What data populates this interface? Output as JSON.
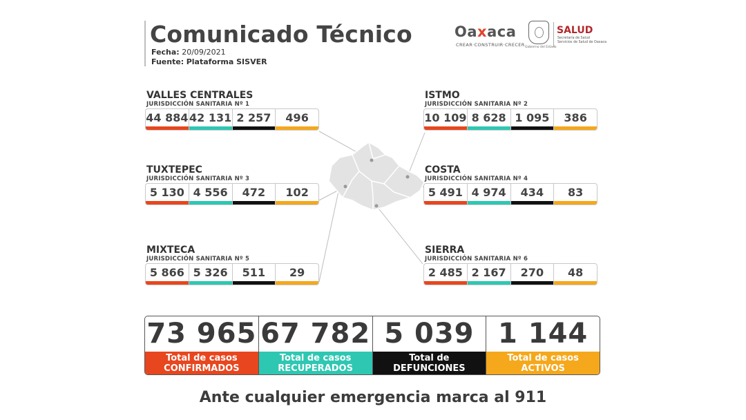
{
  "header": {
    "title": "Comunicado Técnico",
    "fecha_label": "Fecha:",
    "fecha_value": "20/09/2021",
    "fuente_label": "Fuente:",
    "fuente_value": "Plataforma SISVER"
  },
  "logos": {
    "oaxaca_pre": "Oa",
    "oaxaca_x": "x",
    "oaxaca_post": "aca",
    "oaxaca_tagline": "CREAR·CONSTRUIR·CRECER",
    "seal_caption": "Gobierno del Estado",
    "salud": "SALUD",
    "salud_sub1": "Secretaría de Salud",
    "salud_sub2": "Servicios de Salud de Oaxaca"
  },
  "regions": [
    {
      "name": "VALLES CENTRALES",
      "jurisdiction": "JURISDICCIÓN SANITARIA Nº 1",
      "values": [
        "44 884",
        "42 131",
        "2 257",
        "496"
      ]
    },
    {
      "name": "ISTMO",
      "jurisdiction": "JURISDICCIÓN SANITARIA Nº 2",
      "values": [
        "10 109",
        "8 628",
        "1 095",
        "386"
      ]
    },
    {
      "name": "TUXTEPEC",
      "jurisdiction": "JURISDICCIÓN SANITARIA Nº 3",
      "values": [
        "5 130",
        "4 556",
        "472",
        "102"
      ]
    },
    {
      "name": "COSTA",
      "jurisdiction": "JURISDICCIÓN SANITARIA Nº 4",
      "values": [
        "5 491",
        "4 974",
        "434",
        "83"
      ]
    },
    {
      "name": "MIXTECA",
      "jurisdiction": "JURISDICCIÓN SANITARIA Nº 5",
      "values": [
        "5 866",
        "5 326",
        "511",
        "29"
      ]
    },
    {
      "name": "SIERRA",
      "jurisdiction": "JURISDICCIÓN SANITARIA Nº 6",
      "values": [
        "2 485",
        "2 167",
        "270",
        "48"
      ]
    }
  ],
  "totals": [
    {
      "value": "73 965",
      "label1": "Total de casos",
      "label2": "CONFIRMADOS"
    },
    {
      "value": "67 782",
      "label1": "Total de casos",
      "label2": "RECUPERADOS"
    },
    {
      "value": "5 039",
      "label1": "Total de",
      "label2": "DEFUNCIONES"
    },
    {
      "value": "1 144",
      "label1": "Total de casos",
      "label2": "ACTIVOS"
    }
  ],
  "colors": {
    "confirmados": "#e8461e",
    "recuperados": "#2ec7b2",
    "defunciones": "#111111",
    "activos": "#f5a81c"
  },
  "footer": "Ante cualquier emergencia marca al 911"
}
